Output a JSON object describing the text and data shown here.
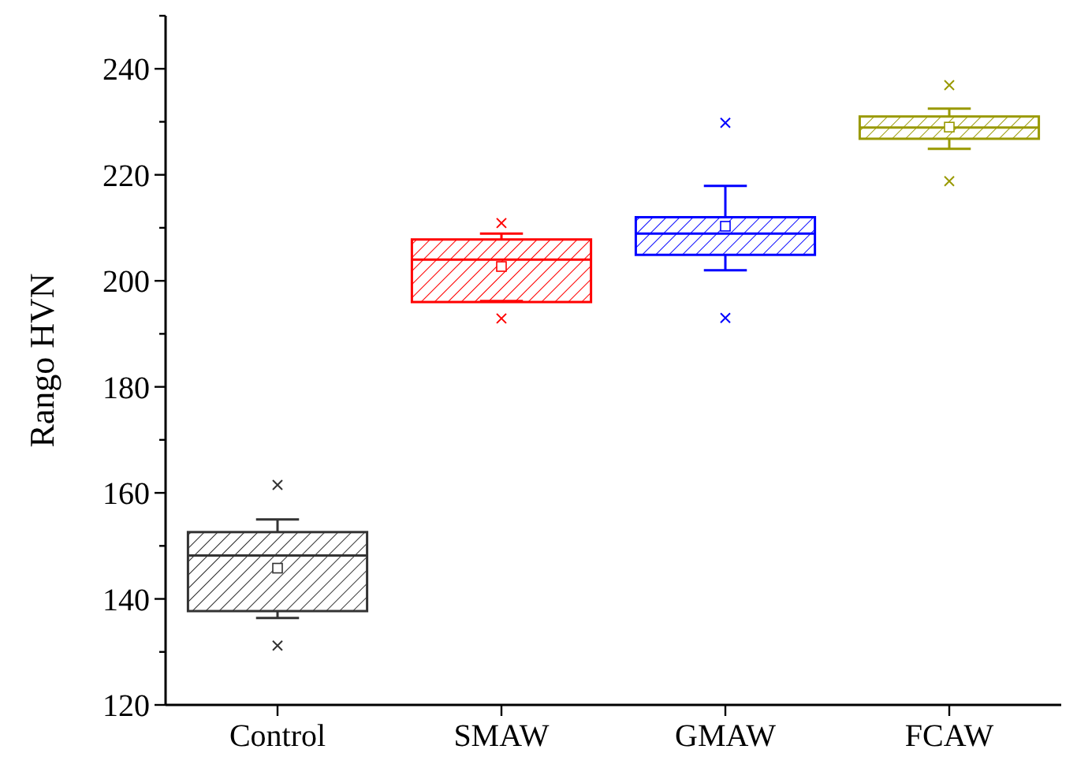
{
  "chart_data": {
    "type": "box",
    "ylabel": "Rango HVN",
    "categories": [
      "Control",
      "SMAW",
      "GMAW",
      "FCAW"
    ],
    "colors": [
      "#333333",
      "#ff0000",
      "#0000ff",
      "#999900"
    ],
    "boxes": [
      {
        "low": 136.4,
        "q1": 137.7,
        "median": 148.2,
        "q3": 152.6,
        "high": 155,
        "mean": 145.8,
        "outliers": [
          161.5,
          131.2
        ]
      },
      {
        "low": 196.2,
        "q1": 196,
        "median": 204,
        "q3": 207.8,
        "high": 208.9,
        "mean": 202.7,
        "outliers": [
          210.9,
          192.9
        ]
      },
      {
        "low": 202,
        "q1": 204.9,
        "median": 208.9,
        "q3": 212,
        "high": 217.9,
        "mean": 210.3,
        "outliers": [
          229.8,
          193
        ]
      },
      {
        "low": 224.9,
        "q1": 226.8,
        "median": 228.9,
        "q3": 231,
        "high": 232.5,
        "mean": 229,
        "outliers": [
          236.9,
          218.8
        ]
      }
    ],
    "ylim": [
      120,
      250
    ],
    "yticks": [
      120,
      {
        "value": 130,
        "label": null
      },
      140,
      {
        "value": 150,
        "label": null
      },
      160,
      {
        "value": 170,
        "label": null
      },
      180,
      {
        "value": 190,
        "label": null
      },
      200,
      {
        "value": 210,
        "label": null
      },
      220,
      {
        "value": 230,
        "label": null
      },
      240,
      {
        "value": 250,
        "label": null
      }
    ],
    "grid": false
  }
}
